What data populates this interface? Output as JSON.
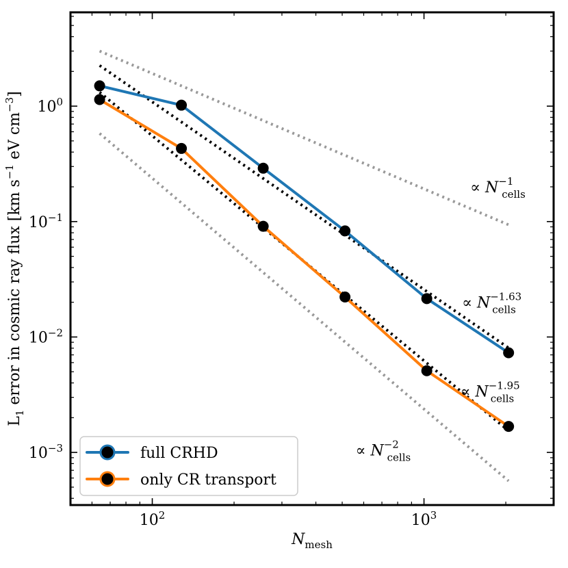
{
  "chart_data": {
    "type": "line",
    "xscale": "log",
    "yscale": "log",
    "xlim": [
      50,
      3000
    ],
    "ylim": [
      0.00035,
      6.5
    ],
    "xlabel": {
      "base": "N",
      "sub": "mesh"
    },
    "ylabel": {
      "main": "L",
      "sub": "1",
      "text": " error in cosmic ray flux [km s",
      "exp1": "−1",
      "mid": " eV cm",
      "exp2": "−3",
      "end": "]"
    },
    "x_ticks": [
      {
        "value": 100,
        "base": "10",
        "exp": "2"
      },
      {
        "value": 1000,
        "base": "10",
        "exp": "3"
      }
    ],
    "y_ticks": [
      {
        "value": 1,
        "base": "10",
        "exp": "0"
      },
      {
        "value": 0.1,
        "base": "10",
        "exp": "−1"
      },
      {
        "value": 0.01,
        "base": "10",
        "exp": "−2"
      },
      {
        "value": 0.001,
        "base": "10",
        "exp": "−3"
      }
    ],
    "x": [
      64,
      128,
      256,
      512,
      1024,
      2048
    ],
    "series": [
      {
        "name": "full CRHD",
        "color": "#1f77b4",
        "values": [
          1.5,
          1.02,
          0.29,
          0.083,
          0.0215,
          0.0073
        ]
      },
      {
        "name": "only CR transport",
        "color": "#ff7f0e",
        "values": [
          1.14,
          0.43,
          0.091,
          0.0222,
          0.0051,
          0.00168
        ]
      }
    ],
    "reference_lines": [
      {
        "label_sym": "∝ N",
        "label_sub": "cells",
        "label_exp": "−1",
        "color": "#999999",
        "x": [
          64,
          2048
        ],
        "y": [
          3.0,
          0.09375
        ],
        "label_at": [
          1480,
          0.2
        ]
      },
      {
        "label_sym": "∝ N",
        "label_sub": "cells",
        "label_exp": "−1.63",
        "color": "#000000",
        "x": [
          64,
          2048
        ],
        "y": [
          2.25,
          0.00804
        ],
        "label_at": [
          1380,
          0.02
        ]
      },
      {
        "label_sym": "∝ N",
        "label_sub": "cells",
        "label_exp": "−1.95",
        "color": "#000000",
        "x": [
          64,
          2048
        ],
        "y": [
          1.32,
          0.00154
        ],
        "label_at": [
          1360,
          0.0034
        ]
      },
      {
        "label_sym": "∝ N",
        "label_sub": "cells",
        "label_exp": "−2",
        "color": "#999999",
        "x": [
          64,
          2048
        ],
        "y": [
          0.58,
          0.000566
        ],
        "label_at": [
          560,
          0.00105
        ]
      }
    ],
    "legend": {
      "position": "lower-left"
    }
  }
}
